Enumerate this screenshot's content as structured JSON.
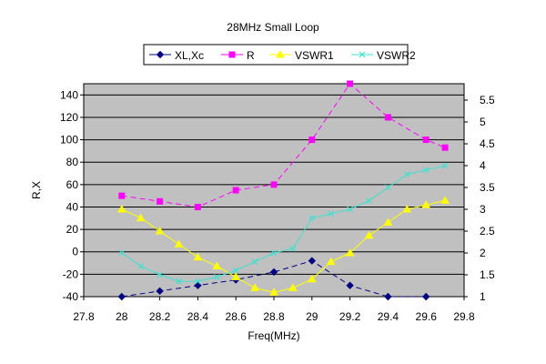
{
  "chart_data": {
    "type": "line",
    "title": "28MHz Small Loop",
    "xlabel": "Freq(MHz)",
    "ylabel": "R,X",
    "y2label": "",
    "xlim": [
      27.8,
      29.8
    ],
    "ylim": [
      -40,
      150
    ],
    "y2lim": [
      1,
      5.875
    ],
    "x_ticks": [
      "27.8",
      "28",
      "28.2",
      "28.4",
      "28.6",
      "28.8",
      "29",
      "29.2",
      "29.4",
      "29.6",
      "29.8"
    ],
    "y_ticks": [
      "-40",
      "-20",
      "0",
      "20",
      "40",
      "60",
      "80",
      "100",
      "120",
      "140"
    ],
    "y2_ticks": [
      "1",
      "1.5",
      "2",
      "2.5",
      "3",
      "3.5",
      "4",
      "4.5",
      "5",
      "5.5"
    ],
    "grid": true,
    "plot_background": "#c0c0c0",
    "legend_position": "top",
    "series": [
      {
        "name": "XL,Xc",
        "axis": "left",
        "color": "#000080",
        "marker": "diamond",
        "line": "dashed",
        "x": [
          28.0,
          28.2,
          28.4,
          28.6,
          28.8,
          29.0,
          29.2,
          29.4,
          29.6
        ],
        "y": [
          -40,
          -35,
          -30,
          -25,
          -18,
          -8,
          -30,
          -40,
          -40
        ]
      },
      {
        "name": "R",
        "axis": "left",
        "color": "#ff00ff",
        "marker": "square",
        "line": "dashed",
        "x": [
          28.0,
          28.2,
          28.4,
          28.6,
          28.8,
          29.0,
          29.2,
          29.4,
          29.6,
          29.7
        ],
        "y": [
          50,
          45,
          40,
          55,
          60,
          100,
          150,
          120,
          100,
          93
        ]
      },
      {
        "name": "VSWR1",
        "axis": "right",
        "color": "#ffff00",
        "marker": "triangle",
        "line": "solid",
        "x": [
          28.0,
          28.1,
          28.2,
          28.3,
          28.4,
          28.5,
          28.6,
          28.7,
          28.8,
          28.9,
          29.0,
          29.1,
          29.2,
          29.3,
          29.4,
          29.5,
          29.6,
          29.7
        ],
        "y": [
          3.0,
          2.8,
          2.5,
          2.2,
          1.9,
          1.7,
          1.45,
          1.2,
          1.1,
          1.2,
          1.4,
          1.8,
          2.0,
          2.4,
          2.7,
          3.0,
          3.1,
          3.2
        ]
      },
      {
        "name": "VSWR2",
        "axis": "right",
        "color": "#40e0d0",
        "marker": "x",
        "line": "solid",
        "x": [
          28.0,
          28.1,
          28.2,
          28.3,
          28.4,
          28.5,
          28.6,
          28.7,
          28.8,
          28.9,
          29.0,
          29.1,
          29.2,
          29.3,
          29.4,
          29.5,
          29.6,
          29.7
        ],
        "y": [
          2.0,
          1.7,
          1.5,
          1.35,
          1.35,
          1.45,
          1.6,
          1.8,
          2.0,
          2.1,
          2.8,
          2.9,
          3.0,
          3.2,
          3.5,
          3.8,
          3.9,
          4.0
        ]
      }
    ]
  }
}
